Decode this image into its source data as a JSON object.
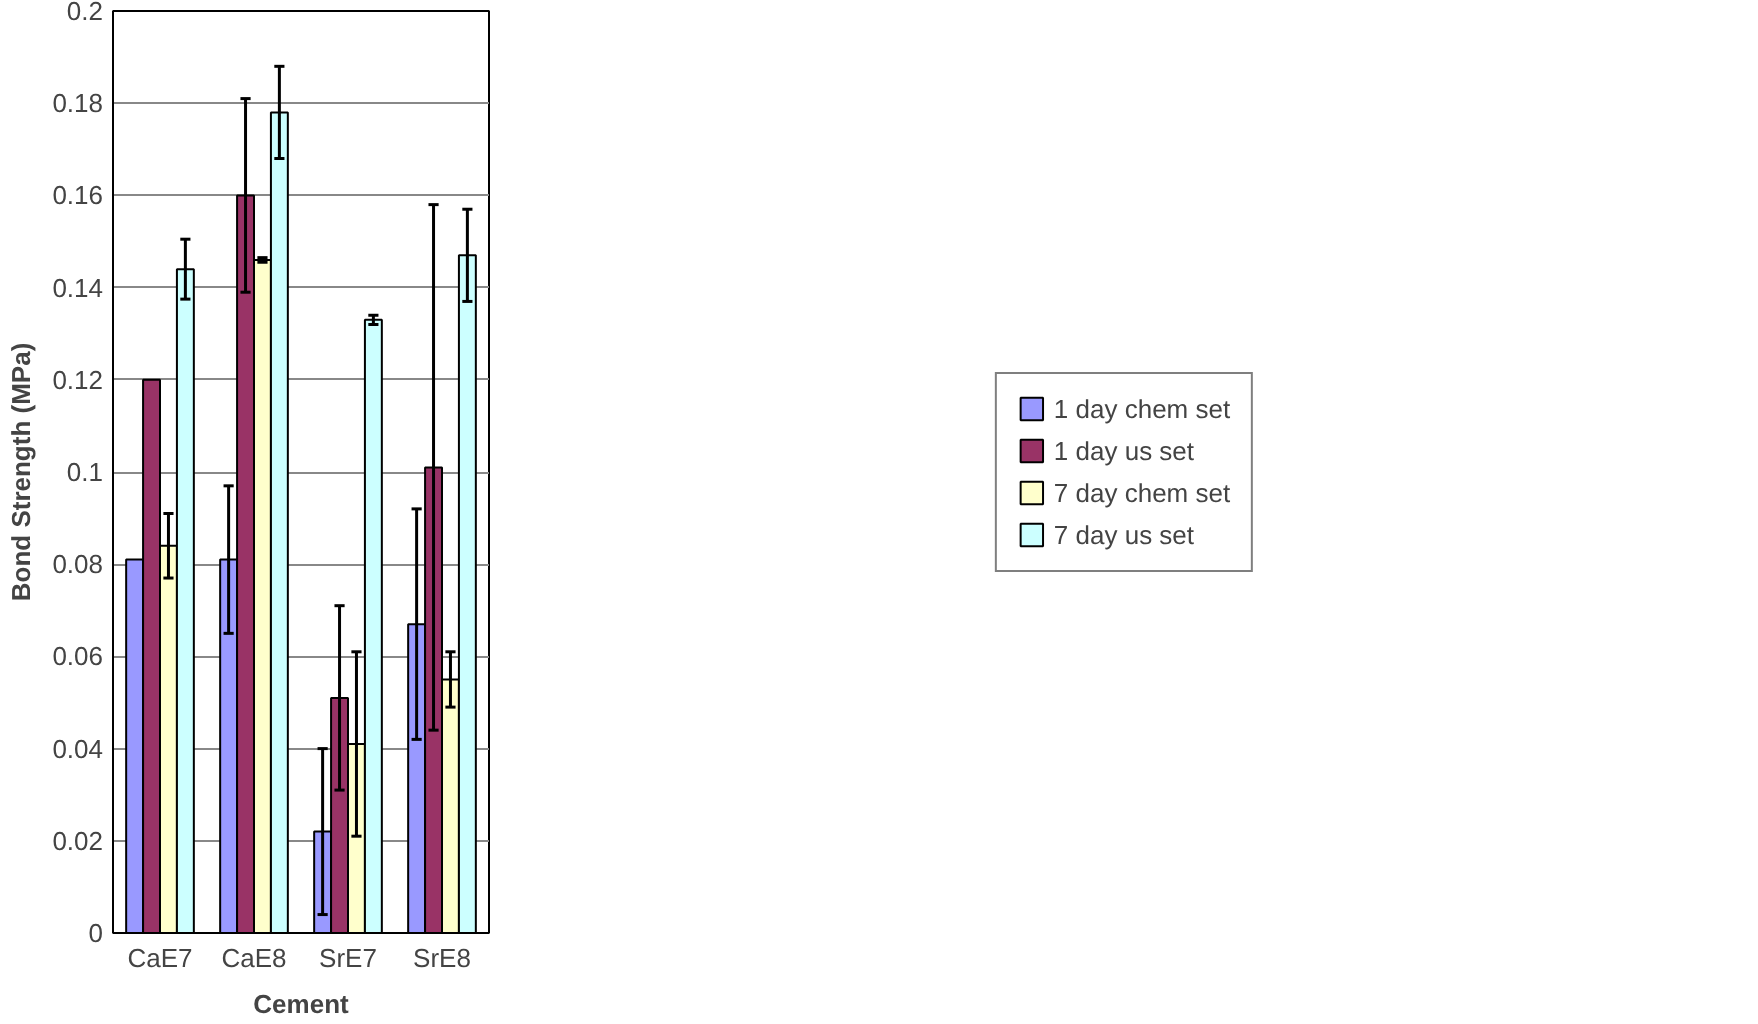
{
  "chart_data": {
    "type": "bar",
    "xlabel": "Cement",
    "ylabel": "Bond Strength (MPa)",
    "categories": [
      "CaE7",
      "CaE8",
      "SrE7",
      "SrE8"
    ],
    "ylim": [
      0,
      0.2
    ],
    "yticks": [
      0,
      0.02,
      0.04,
      0.06,
      0.08,
      0.1,
      0.12,
      0.14,
      0.16,
      0.18,
      0.2
    ],
    "grid": "y",
    "legend": "right",
    "series": [
      {
        "name": "1 day chem set",
        "color": "#9999ff",
        "values": [
          0.081,
          0.081,
          0.022,
          0.067
        ],
        "errors": [
          null,
          0.016,
          0.018,
          0.025
        ]
      },
      {
        "name": "1 day us set",
        "color": "#993366",
        "values": [
          0.12,
          0.16,
          0.051,
          0.101
        ],
        "errors": [
          null,
          0.021,
          0.02,
          0.057
        ]
      },
      {
        "name": "7 day chem set",
        "color": "#ffffcc",
        "values": [
          0.084,
          0.146,
          0.041,
          0.055
        ],
        "errors": [
          0.007,
          0.0005,
          0.02,
          0.006
        ]
      },
      {
        "name": "7 day us set",
        "color": "#ccffff",
        "values": [
          0.144,
          0.178,
          0.133,
          0.147
        ],
        "errors": [
          0.0065,
          0.01,
          0.001,
          0.01
        ]
      }
    ]
  }
}
